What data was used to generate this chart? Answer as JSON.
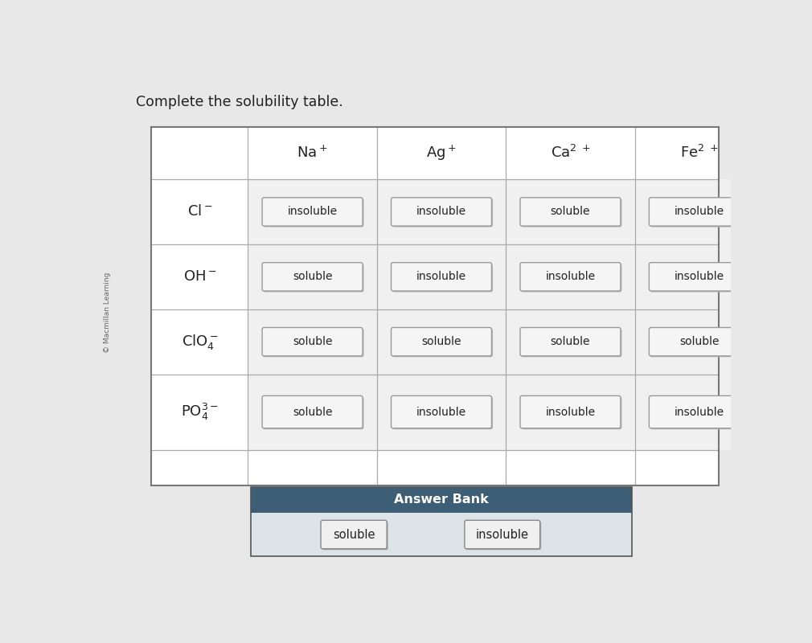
{
  "title": "Complete the solubility table.",
  "background_color": "#e8e8e8",
  "table_bg": "#ffffff",
  "cell_bg": "#f0f0f0",
  "header_bg": "#f5f5f5",
  "cells": [
    [
      "insoluble",
      "insoluble",
      "soluble",
      "insoluble"
    ],
    [
      "soluble",
      "insoluble",
      "insoluble",
      "insoluble"
    ],
    [
      "soluble",
      "soluble",
      "soluble",
      "soluble"
    ],
    [
      "soluble",
      "insoluble",
      "insoluble",
      "insoluble"
    ]
  ],
  "answer_bank_title": "Answer Bank",
  "answer_bank_items": [
    "soluble",
    "insoluble"
  ],
  "answer_bank_bg": "#3d5f75",
  "answer_bank_title_color": "#ffffff",
  "answer_bank_body_bg": "#dce4e8",
  "box_border_color": "#999999",
  "grid_color": "#999999",
  "text_color": "#222222",
  "sidebar_text": "© Macmillan Learning",
  "header_labels": [
    "Na⁺",
    "Ag⁺",
    "Ca² +",
    "Fe² +"
  ],
  "row_labels": [
    "Cl⁻",
    "OH⁻",
    "ClO₄⁻",
    "PO₄³⁻"
  ]
}
